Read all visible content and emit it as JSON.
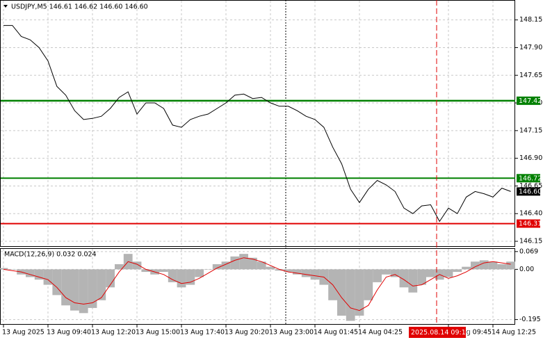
{
  "chart_data": [
    {
      "type": "line",
      "title": "USDJPY,M5  146.61 146.62 146.60 146.60",
      "categories": [
        "13 Aug 2025",
        null,
        null,
        null,
        null,
        "13 Aug 09:40",
        null,
        null,
        null,
        null,
        "13 Aug 12:20",
        null,
        null,
        null,
        null,
        "13 Aug 15:00",
        null,
        null,
        null,
        null,
        "13 Aug 17:40",
        null,
        null,
        null,
        null,
        "13 Aug 20:20",
        null,
        null,
        null,
        null,
        "13 Aug 23:00",
        null,
        null,
        null,
        null,
        "14 Aug 01:45",
        null,
        null,
        null,
        null,
        "14 Aug 04:25",
        null,
        null,
        null,
        null,
        null,
        null,
        null,
        null,
        null,
        "14 Aug 09:45",
        null,
        null,
        null,
        null,
        "14 Aug 12:25",
        null,
        null
      ],
      "values": [
        148.1,
        148.1,
        148.0,
        147.97,
        147.9,
        147.78,
        147.55,
        147.47,
        147.33,
        147.25,
        147.26,
        147.28,
        147.35,
        147.45,
        147.5,
        147.3,
        147.4,
        147.4,
        147.35,
        147.2,
        147.18,
        147.25,
        147.28,
        147.3,
        147.35,
        147.4,
        147.47,
        147.48,
        147.44,
        147.45,
        147.4,
        147.37,
        147.37,
        147.33,
        147.28,
        147.25,
        147.18,
        147.0,
        146.85,
        146.62,
        146.5,
        146.62,
        146.7,
        146.66,
        146.6,
        146.45,
        146.4,
        146.47,
        146.48,
        146.33,
        146.45,
        146.4,
        146.55,
        146.6,
        146.58,
        146.55,
        146.63,
        146.6
      ],
      "color": "#000000",
      "ylim": [
        146.1,
        148.33
      ],
      "yticks": [
        {
          "value": 148.15,
          "label": "148.15"
        },
        {
          "value": 147.9,
          "label": "147.90"
        },
        {
          "value": 147.65,
          "label": "147.65"
        },
        {
          "value": 147.4,
          "label": "147.40"
        },
        {
          "value": 147.15,
          "label": "147.15"
        },
        {
          "value": 146.9,
          "label": "146.90"
        },
        {
          "value": 146.65,
          "label": "146.65"
        },
        {
          "value": 146.4,
          "label": "146.40"
        },
        {
          "value": 146.15,
          "label": "146.15"
        }
      ],
      "grid": true,
      "levels": [
        {
          "value": 147.42,
          "color": "#008000"
        },
        {
          "value": 146.72,
          "color": "#008000"
        },
        {
          "value": 146.31,
          "color": "#e00000"
        }
      ],
      "last_price": {
        "value": 146.6,
        "label": "146.60"
      },
      "cursor_label": "2025.08.14 09:10"
    },
    {
      "type": "macd",
      "title": "MACD(12,26,9) 0.032 0.024",
      "values": [
        0.005,
        0.0,
        -0.02,
        -0.03,
        -0.04,
        -0.06,
        -0.1,
        -0.14,
        -0.16,
        -0.17,
        -0.15,
        -0.12,
        -0.07,
        0.02,
        0.06,
        0.03,
        -0.01,
        -0.02,
        -0.01,
        -0.05,
        -0.07,
        -0.06,
        -0.03,
        0.0,
        0.02,
        0.03,
        0.05,
        0.06,
        0.045,
        0.03,
        0.01,
        -0.005,
        -0.01,
        -0.02,
        -0.03,
        -0.04,
        -0.06,
        -0.12,
        -0.18,
        -0.2,
        -0.18,
        -0.12,
        -0.05,
        -0.02,
        -0.03,
        -0.07,
        -0.09,
        -0.06,
        -0.03,
        -0.04,
        -0.03,
        -0.01,
        0.01,
        0.03,
        0.035,
        0.03,
        0.02,
        0.03
      ],
      "color": "#b4b4b4",
      "signal": [
        0.0,
        -0.005,
        -0.01,
        -0.02,
        -0.03,
        -0.04,
        -0.07,
        -0.11,
        -0.13,
        -0.135,
        -0.13,
        -0.11,
        -0.06,
        -0.01,
        0.03,
        0.02,
        0.0,
        -0.01,
        -0.02,
        -0.04,
        -0.055,
        -0.05,
        -0.035,
        -0.015,
        0.005,
        0.02,
        0.035,
        0.045,
        0.04,
        0.03,
        0.015,
        0.0,
        -0.01,
        -0.015,
        -0.02,
        -0.025,
        -0.03,
        -0.06,
        -0.11,
        -0.15,
        -0.16,
        -0.14,
        -0.08,
        -0.03,
        -0.02,
        -0.04,
        -0.065,
        -0.06,
        -0.04,
        -0.02,
        -0.035,
        -0.025,
        -0.01,
        0.01,
        0.025,
        0.03,
        0.025,
        0.02
      ],
      "signal_color": "#e00000",
      "ylim": [
        -0.215,
        0.082
      ],
      "yticks": [
        0.069,
        {
          "value": 0,
          "label": "0.00"
        },
        -0.195
      ],
      "grid": true
    }
  ]
}
